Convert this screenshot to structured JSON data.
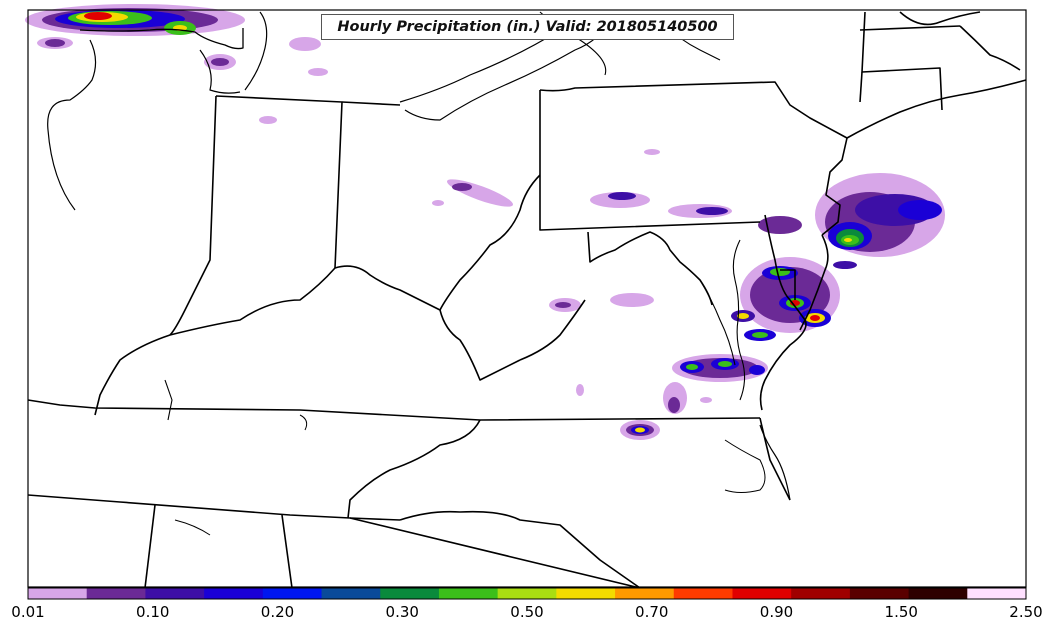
{
  "title": "Hourly Precipitation (in.) Valid: 201805140500",
  "colorbar": {
    "colors": [
      "#d7a6e8",
      "#6b2a96",
      "#3d0fa6",
      "#1a00d6",
      "#0016f0",
      "#0a4a9a",
      "#0a8a3c",
      "#3bbf1a",
      "#a9dd12",
      "#f3db00",
      "#ff9a00",
      "#ff3b00",
      "#e00000",
      "#a00000",
      "#5a0000",
      "#2e0000",
      "#ffe0ff"
    ],
    "tick_labels": [
      "0.01",
      "0.10",
      "0.20",
      "0.30",
      "0.50",
      "0.70",
      "0.90",
      "1.50",
      "2.50"
    ]
  },
  "precip_scale": [
    "#d7a6e8",
    "#6b2a96",
    "#3d0fa6",
    "#1a00d6",
    "#0a8a3c",
    "#3bbf1a",
    "#f3db00",
    "#ff3b00",
    "#e00000"
  ]
}
